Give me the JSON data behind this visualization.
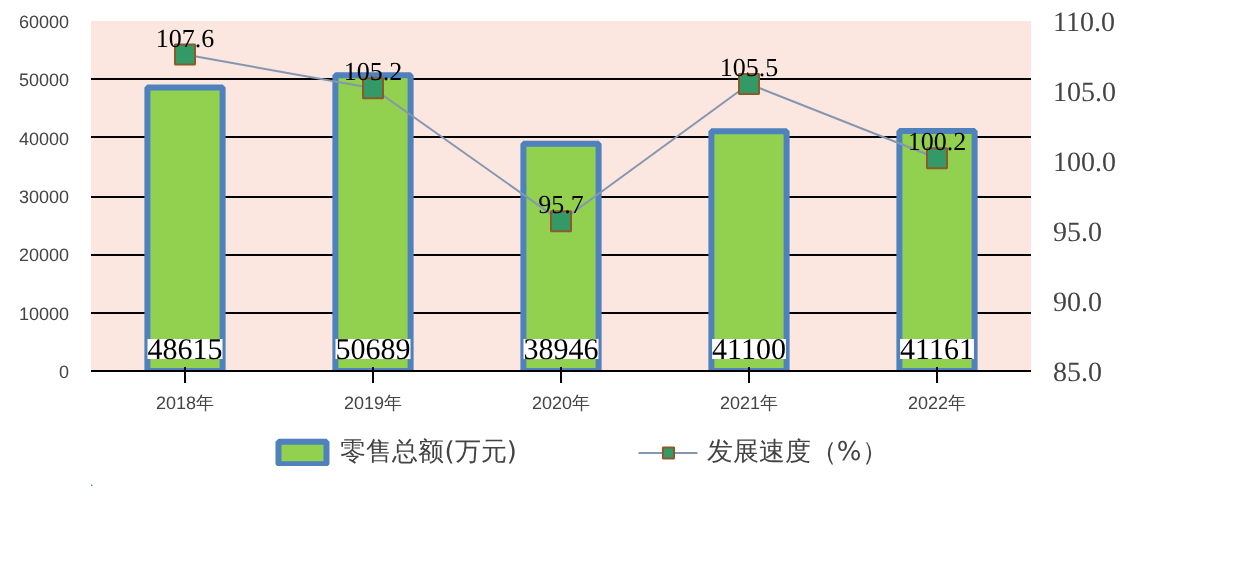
{
  "chart_data": {
    "type": "bar",
    "categories": [
      "2018年",
      "2019年",
      "2020年",
      "2021年",
      "2022年"
    ],
    "series": [
      {
        "name": "零售总额(万元)",
        "type": "bar",
        "color": "#92d050",
        "values": [
          48615,
          50689,
          38946,
          41100,
          41161
        ]
      },
      {
        "name": "发展速度（%）",
        "type": "line",
        "axis": "y2",
        "color": "#339966",
        "values": [
          107.6,
          105.2,
          95.7,
          105.5,
          100.2
        ]
      }
    ],
    "ylim": [
      0,
      60000
    ],
    "yticks": [
      0,
      10000,
      20000,
      30000,
      40000,
      50000,
      60000
    ],
    "y2lim": [
      85,
      110
    ],
    "y2ticks": [
      {
        "value": 85,
        "label": "85.0"
      },
      {
        "value": 90,
        "label": "90.0"
      },
      {
        "value": 95,
        "label": "95.0"
      },
      {
        "value": 100,
        "label": "100.0"
      },
      {
        "value": 105,
        "label": "105.0"
      },
      {
        "value": 110,
        "label": "110.0"
      }
    ],
    "grid": "y",
    "legend": "bottom",
    "marker": "square",
    "data_labels": true
  }
}
